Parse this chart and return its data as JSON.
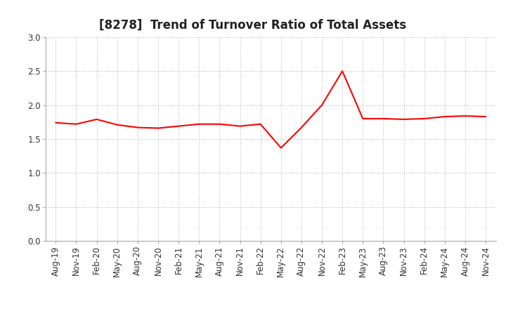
{
  "title": "[8278]  Trend of Turnover Ratio of Total Assets",
  "x_labels": [
    "Aug-19",
    "Nov-19",
    "Feb-20",
    "May-20",
    "Aug-20",
    "Nov-20",
    "Feb-21",
    "May-21",
    "Aug-21",
    "Nov-21",
    "Feb-22",
    "May-22",
    "Aug-22",
    "Nov-22",
    "Feb-23",
    "May-23",
    "Aug-23",
    "Nov-23",
    "Feb-24",
    "May-24",
    "Aug-24",
    "Nov-24"
  ],
  "y_values": [
    1.74,
    1.72,
    1.79,
    1.71,
    1.67,
    1.66,
    1.69,
    1.72,
    1.72,
    1.69,
    1.72,
    1.37,
    1.67,
    2.0,
    2.5,
    1.8,
    1.8,
    1.79,
    1.8,
    1.83,
    1.84,
    1.83
  ],
  "line_color": "#FF0000",
  "line_width": 1.5,
  "ylim": [
    0.0,
    3.0
  ],
  "yticks": [
    0.0,
    0.5,
    1.0,
    1.5,
    2.0,
    2.5,
    3.0
  ],
  "background_color": "#FFFFFF",
  "grid_color": "#BBBBBB",
  "title_fontsize": 12,
  "tick_fontsize": 8.5
}
